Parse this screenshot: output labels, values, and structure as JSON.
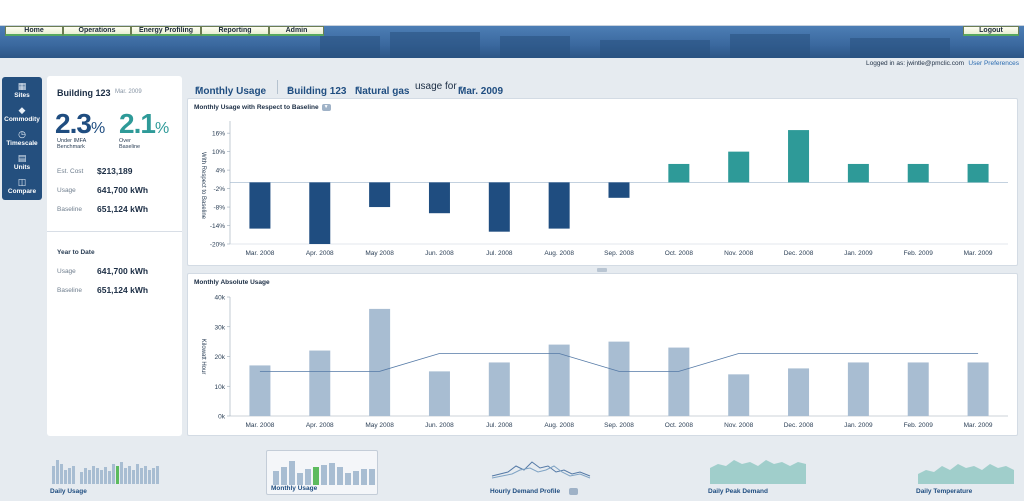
{
  "nav": {
    "items": [
      "Home",
      "Operations",
      "Energy Profiling",
      "Reporting",
      "Admin"
    ],
    "logout": "Logout"
  },
  "userbar": {
    "logged_in": "Logged in as: jwintle@pmclic.com",
    "preferences": "User Preferences"
  },
  "sidebar": {
    "items": [
      {
        "label": "Sites",
        "icon": "building-icon"
      },
      {
        "label": "Commodity",
        "icon": "drop-icon"
      },
      {
        "label": "Timescale",
        "icon": "clock-icon"
      },
      {
        "label": "Units",
        "icon": "units-icon"
      },
      {
        "label": "Compare",
        "icon": "compare-icon"
      }
    ]
  },
  "info": {
    "building": "Building 123",
    "date": "Mar. 2009",
    "benchmark_value": "2.3",
    "benchmark_caption": "Under IMFA Benchmark",
    "baseline_value": "2.1",
    "baseline_caption": "Over Baseline",
    "pct": "%",
    "est_cost_label": "Est. Cost",
    "est_cost_value": "$213,189",
    "usage_label": "Usage",
    "usage_value": "641,700 kWh",
    "baseline_label": "Baseline",
    "baseline_kwh": "651,124 kWh",
    "ytd_title": "Year to Date",
    "ytd_usage_label": "Usage",
    "ytd_usage_value": "641,700 kWh",
    "ytd_baseline_label": "Baseline",
    "ytd_baseline_value": "651,124 kWh",
    "benchmark_color": "#1f4d80",
    "baseline_color": "#2e9a98"
  },
  "header": {
    "view": "Monthly Usage",
    "building": "Building 123",
    "commodity": "Natural gas",
    "usage_for": "usage for",
    "period": "Mar. 2009"
  },
  "chart_data": [
    {
      "type": "bar",
      "title": "Monthly Usage with Respect to Baseline",
      "ylabel": "With Respect to Baseline",
      "categories": [
        "Mar. 2008",
        "Apr. 2008",
        "May 2008",
        "Jun. 2008",
        "Jul. 2008",
        "Aug. 2008",
        "Sep. 2008",
        "Oct. 2008",
        "Nov. 2008",
        "Dec. 2008",
        "Jan. 2009",
        "Feb. 2009",
        "Mar. 2009"
      ],
      "values": [
        -15,
        -20,
        -8,
        -10,
        -16,
        -15,
        -5,
        6,
        10,
        17,
        6,
        6,
        6
      ],
      "yticks": [
        16,
        10,
        4,
        -2,
        -8,
        -14,
        -20
      ],
      "ytick_labels": [
        "16%",
        "10%",
        "4%",
        "-2%",
        "-8%",
        "-14%",
        "-20%"
      ],
      "ylim": [
        -20,
        18
      ],
      "negative_color": "#1f4d80",
      "positive_color": "#2e9a98"
    },
    {
      "type": "bar",
      "title": "Monthly Absolute Usage",
      "ylabel": "Kilowatt Hour",
      "categories": [
        "Mar. 2008",
        "Apr. 2008",
        "May 2008",
        "Jun. 2008",
        "Jul. 2008",
        "Aug. 2008",
        "Sep. 2008",
        "Oct. 2008",
        "Nov. 2008",
        "Dec. 2008",
        "Jan. 2009",
        "Feb. 2009",
        "Mar. 2009"
      ],
      "values": [
        17000,
        22000,
        36000,
        15000,
        18000,
        24000,
        25000,
        23000,
        14000,
        16000,
        18000,
        18000,
        18000
      ],
      "baseline": [
        15000,
        15000,
        15000,
        21000,
        21000,
        21000,
        15000,
        15000,
        21000,
        21000,
        21000,
        21000,
        21000
      ],
      "yticks": [
        0,
        10000,
        20000,
        30000,
        40000
      ],
      "ytick_labels": [
        "0k",
        "10k",
        "20k",
        "30k",
        "40k"
      ],
      "ylim": [
        0,
        40000
      ],
      "bar_color": "#a8bdd2",
      "line_color": "#5479a6"
    }
  ],
  "thumbnails": [
    {
      "label": "Daily Usage"
    },
    {
      "label": "Monthly Usage"
    },
    {
      "label": "Hourly Demand Profile"
    },
    {
      "label": "Daily Peak Demand"
    },
    {
      "label": "Daily Temperature"
    }
  ]
}
